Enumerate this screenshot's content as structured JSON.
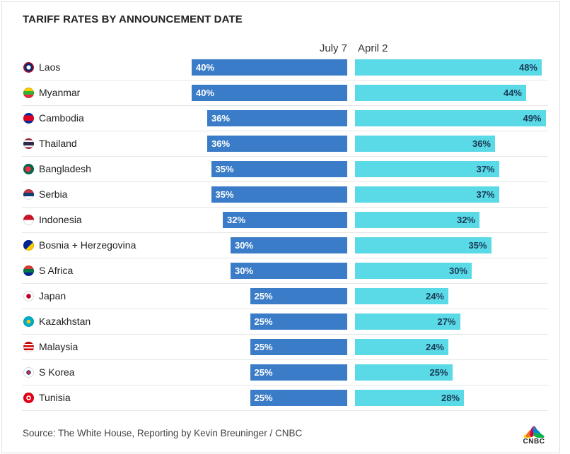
{
  "chart_data": {
    "type": "bar",
    "title": "TARIFF RATES BY ANNOUNCEMENT DATE",
    "unit": "%",
    "categories": [
      "Laos",
      "Myanmar",
      "Cambodia",
      "Thailand",
      "Bangladesh",
      "Serbia",
      "Indonesia",
      "Bosnia + Herzegovina",
      "S Africa",
      "Japan",
      "Kazakhstan",
      "Malaysia",
      "S Korea",
      "Tunisia"
    ],
    "series": [
      {
        "name": "July 7",
        "color": "#3a7cc7",
        "values": [
          40,
          40,
          36,
          36,
          35,
          35,
          32,
          30,
          30,
          25,
          25,
          25,
          25,
          25
        ]
      },
      {
        "name": "April 2",
        "color": "#5ad9e6",
        "values": [
          48,
          44,
          49,
          36,
          37,
          37,
          32,
          35,
          30,
          24,
          27,
          24,
          25,
          28
        ]
      }
    ],
    "xlim": [
      0,
      50
    ]
  },
  "labels": {
    "source": "Source: The White House, Reporting by Kevin Breuninger / CNBC",
    "logo_text": "CNBC"
  },
  "flags": [
    {
      "icon": "laos-flag-icon",
      "colors": [
        "#ce1126",
        "#002868",
        "#ffffff"
      ]
    },
    {
      "icon": "myanmar-flag-icon",
      "colors": [
        "#fecb00",
        "#34b233",
        "#ea2839"
      ]
    },
    {
      "icon": "cambodia-flag-icon",
      "colors": [
        "#032ea1",
        "#e00025",
        "#ffffff"
      ]
    },
    {
      "icon": "thailand-flag-icon",
      "colors": [
        "#a51931",
        "#f4f5f8",
        "#2d2a4a"
      ]
    },
    {
      "icon": "bangladesh-flag-icon",
      "colors": [
        "#006a4e",
        "#f42a41"
      ]
    },
    {
      "icon": "serbia-flag-icon",
      "colors": [
        "#c6363c",
        "#0c4076",
        "#ffffff"
      ]
    },
    {
      "icon": "indonesia-flag-icon",
      "colors": [
        "#ce1126",
        "#ffffff"
      ]
    },
    {
      "icon": "bosnia-flag-icon",
      "colors": [
        "#002395",
        "#fecb00"
      ]
    },
    {
      "icon": "south-africa-flag-icon",
      "colors": [
        "#007749",
        "#000000",
        "#ffb81c",
        "#de3831",
        "#002395"
      ]
    },
    {
      "icon": "japan-flag-icon",
      "colors": [
        "#ffffff",
        "#bc002d"
      ]
    },
    {
      "icon": "kazakhstan-flag-icon",
      "colors": [
        "#00afca",
        "#fec50c"
      ]
    },
    {
      "icon": "malaysia-flag-icon",
      "colors": [
        "#cc0001",
        "#ffffff",
        "#010066",
        "#ffcc00"
      ]
    },
    {
      "icon": "south-korea-flag-icon",
      "colors": [
        "#ffffff",
        "#cd2e3a",
        "#0047a0",
        "#000000"
      ]
    },
    {
      "icon": "tunisia-flag-icon",
      "colors": [
        "#e70013",
        "#ffffff"
      ]
    }
  ],
  "logo_colors": [
    "#fccc12",
    "#f37021",
    "#cc004c",
    "#6460aa",
    "#0089d0",
    "#0db14b"
  ]
}
